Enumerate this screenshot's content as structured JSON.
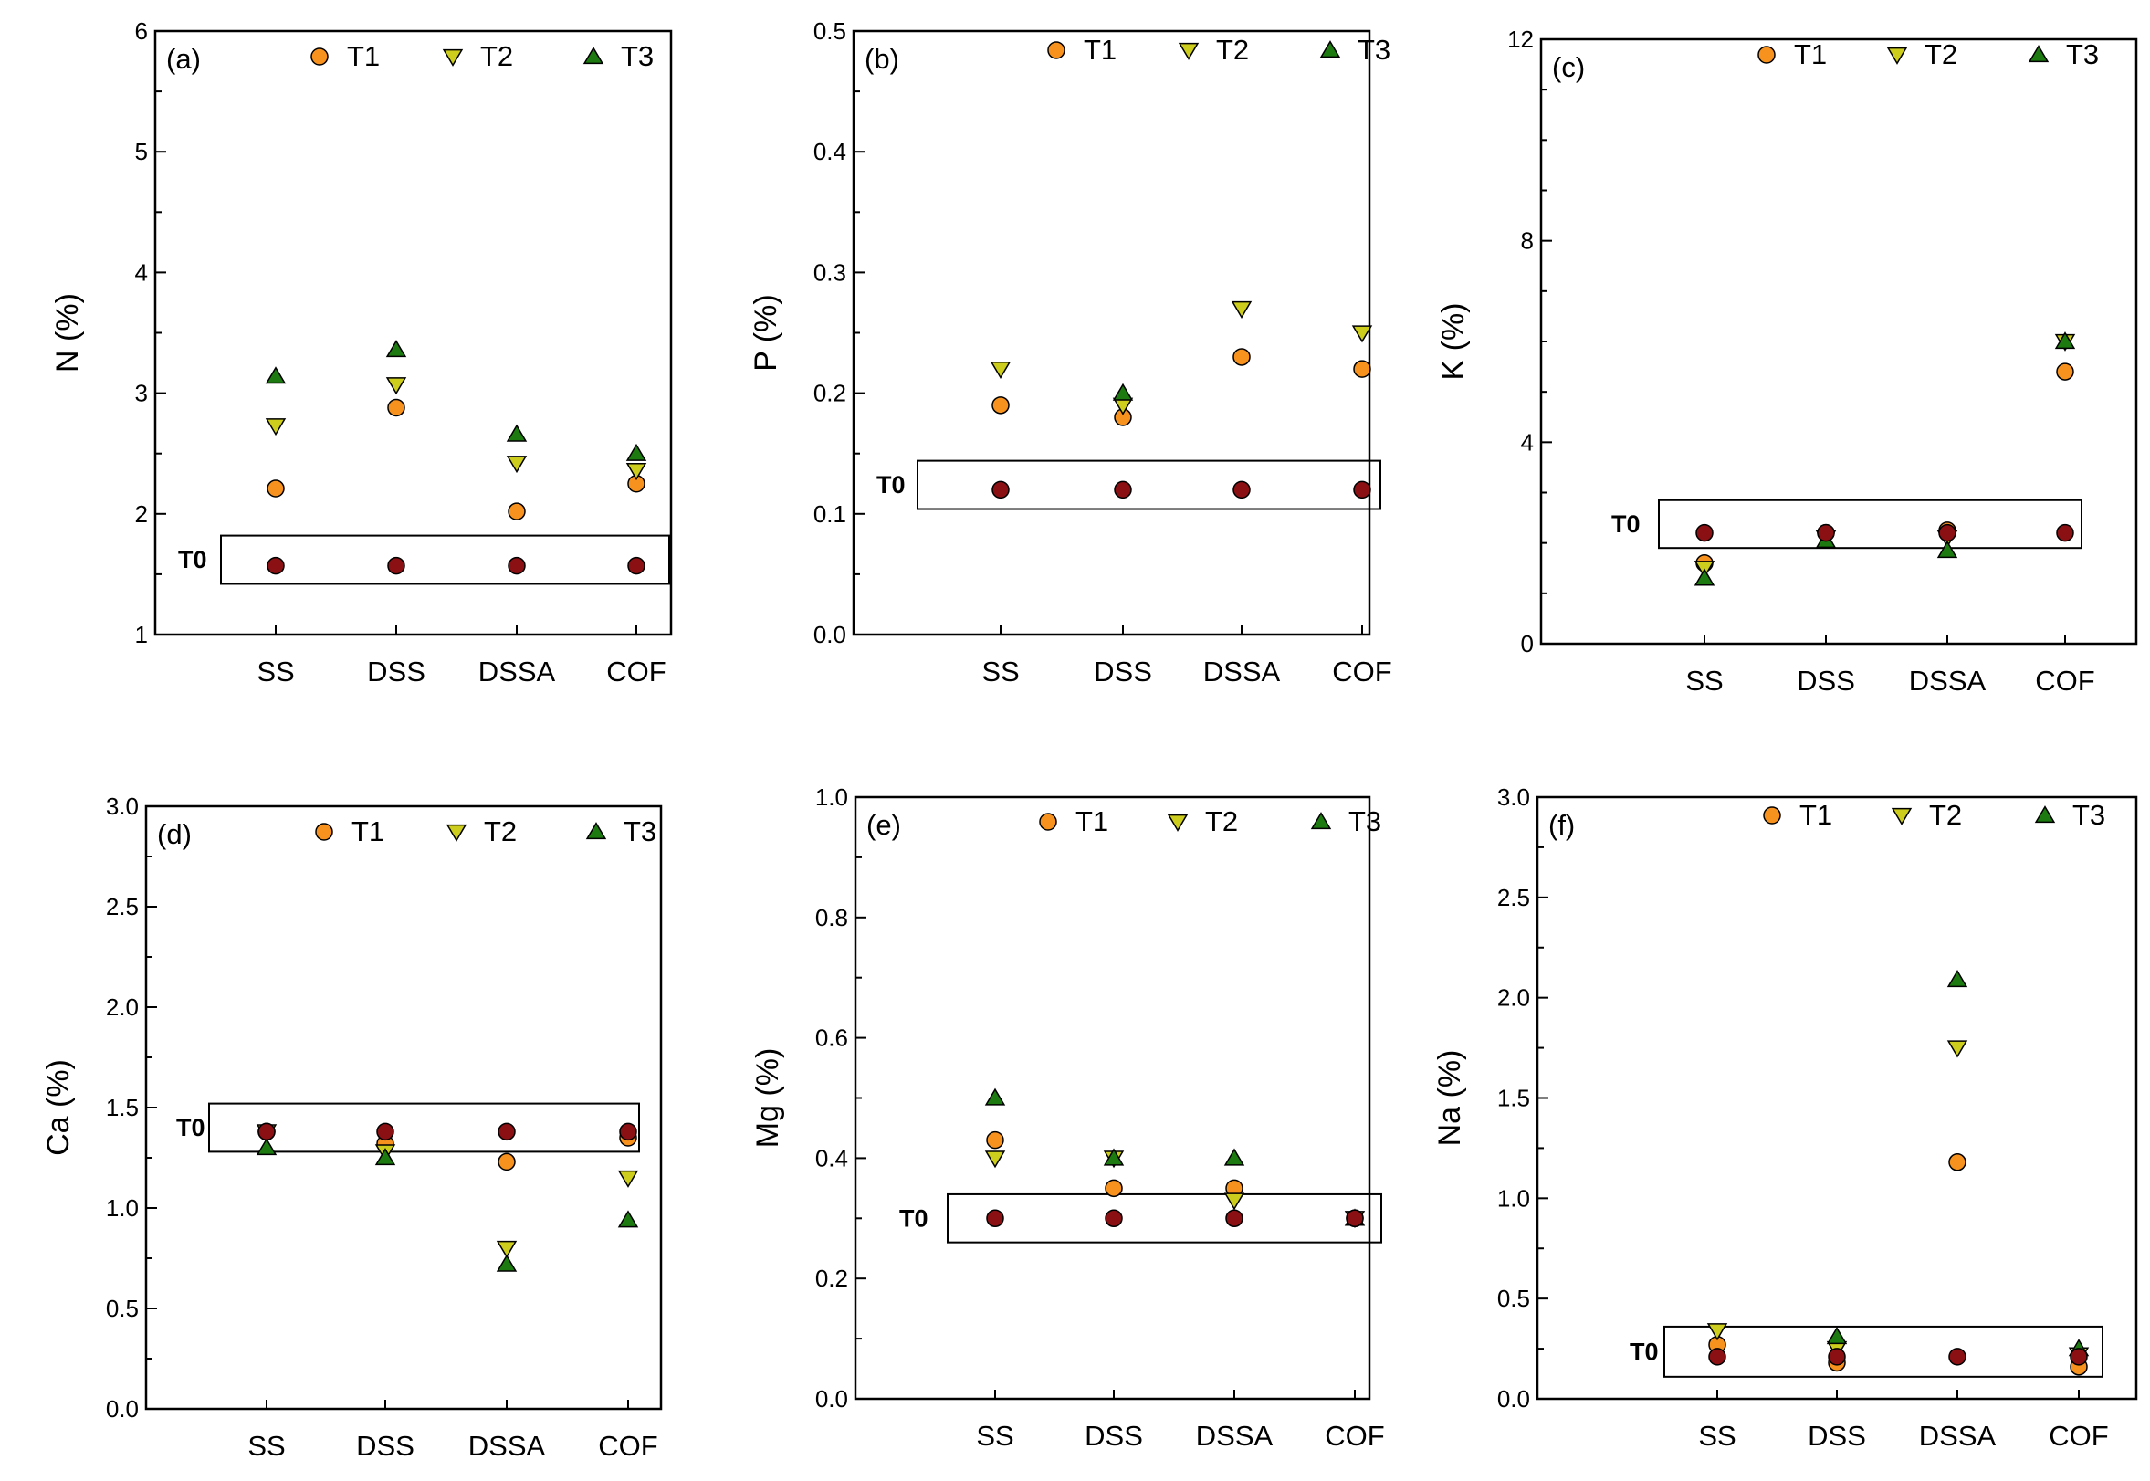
{
  "colors": {
    "T0": "#8b1014",
    "T1": "#f7921e",
    "T2": "#cdcd1e",
    "T3": "#1d7a10"
  },
  "legend": [
    "T1",
    "T2",
    "T3"
  ],
  "t0_label": "T0",
  "chart_data": [
    {
      "type": "scatter",
      "panel": "(a)",
      "ylabel": "N (%)",
      "categories": [
        "SS",
        "DSS",
        "DSSA",
        "COF"
      ],
      "ylim": [
        1,
        6
      ],
      "yticks": [
        "1",
        "2",
        "3",
        "4",
        "5",
        "6"
      ],
      "series": [
        {
          "name": "T1",
          "values": [
            2.21,
            2.88,
            2.02,
            2.25
          ]
        },
        {
          "name": "T2",
          "values": [
            2.73,
            3.07,
            2.42,
            2.36
          ]
        },
        {
          "name": "T3",
          "values": [
            3.14,
            3.36,
            2.66,
            2.5
          ]
        },
        {
          "name": "T0",
          "values": [
            1.57,
            1.57,
            1.57,
            1.57
          ]
        }
      ],
      "t0_range": [
        1.42,
        1.82
      ]
    },
    {
      "type": "scatter",
      "panel": "(b)",
      "ylabel": "P (%)",
      "categories": [
        "SS",
        "DSS",
        "DSSA",
        "COF"
      ],
      "ylim": [
        0,
        0.5
      ],
      "yticks": [
        "0.0",
        "0.1",
        "0.2",
        "0.3",
        "0.4",
        "0.5"
      ],
      "series": [
        {
          "name": "T1",
          "values": [
            0.19,
            0.18,
            0.23,
            0.22
          ]
        },
        {
          "name": "T2",
          "values": [
            0.22,
            0.19,
            0.27,
            0.25
          ]
        },
        {
          "name": "T3",
          "values": [
            null,
            0.2,
            null,
            null
          ]
        },
        {
          "name": "T0",
          "values": [
            0.12,
            0.12,
            0.12,
            0.12
          ]
        }
      ],
      "t0_range": [
        0.104,
        0.144
      ]
    },
    {
      "type": "scatter",
      "panel": "(c)",
      "ylabel": "K (%)",
      "categories": [
        "SS",
        "DSS",
        "DSSA",
        "COF"
      ],
      "ylim": [
        0,
        12
      ],
      "yticks": [
        "0",
        "4",
        "8",
        "12"
      ],
      "series": [
        {
          "name": "T1",
          "values": [
            1.6,
            2.2,
            2.25,
            5.4
          ]
        },
        {
          "name": "T2",
          "values": [
            1.5,
            2.1,
            2.1,
            6.0
          ]
        },
        {
          "name": "T3",
          "values": [
            1.3,
            2.05,
            1.85,
            6.0
          ]
        },
        {
          "name": "T0",
          "values": [
            2.2,
            2.2,
            2.2,
            2.2
          ]
        }
      ],
      "t0_range": [
        1.9,
        2.85
      ]
    },
    {
      "type": "scatter",
      "panel": "(d)",
      "ylabel": "Ca (%)",
      "categories": [
        "SS",
        "DSS",
        "DSSA",
        "COF"
      ],
      "ylim": [
        0,
        3
      ],
      "yticks": [
        "0.0",
        "0.5",
        "1.0",
        "1.5",
        "2.0",
        "2.5",
        "3.0"
      ],
      "series": [
        {
          "name": "T1",
          "values": [
            1.38,
            1.32,
            1.23,
            1.35
          ]
        },
        {
          "name": "T2",
          "values": [
            1.38,
            1.28,
            0.8,
            1.15
          ]
        },
        {
          "name": "T3",
          "values": [
            1.3,
            1.25,
            0.72,
            0.94
          ]
        },
        {
          "name": "T0",
          "values": [
            1.38,
            1.38,
            1.38,
            1.38
          ]
        }
      ],
      "t0_range": [
        1.28,
        1.52
      ]
    },
    {
      "type": "scatter",
      "panel": "(e)",
      "ylabel": "Mg (%)",
      "categories": [
        "SS",
        "DSS",
        "DSSA",
        "COF"
      ],
      "ylim": [
        0,
        1
      ],
      "yticks": [
        "0.0",
        "0.2",
        "0.4",
        "0.6",
        "0.8",
        "1.0"
      ],
      "series": [
        {
          "name": "T1",
          "values": [
            0.43,
            0.35,
            0.35,
            0.3
          ]
        },
        {
          "name": "T2",
          "values": [
            0.4,
            0.4,
            0.33,
            0.3
          ]
        },
        {
          "name": "T3",
          "values": [
            0.5,
            0.4,
            0.4,
            0.3
          ]
        },
        {
          "name": "T0",
          "values": [
            0.3,
            0.3,
            0.3,
            0.3
          ]
        }
      ],
      "t0_range": [
        0.26,
        0.34
      ]
    },
    {
      "type": "scatter",
      "panel": "(f)",
      "ylabel": "Na (%)",
      "categories": [
        "SS",
        "DSS",
        "DSSA",
        "COF"
      ],
      "ylim": [
        0,
        3
      ],
      "yticks": [
        "0.0",
        "0.5",
        "1.0",
        "1.5",
        "2.0",
        "2.5",
        "3.0"
      ],
      "series": [
        {
          "name": "T1",
          "values": [
            0.27,
            0.18,
            1.18,
            0.16
          ]
        },
        {
          "name": "T2",
          "values": [
            0.34,
            0.25,
            1.75,
            0.22
          ]
        },
        {
          "name": "T3",
          "values": [
            null,
            0.31,
            2.09,
            0.25
          ]
        },
        {
          "name": "T0",
          "values": [
            0.21,
            0.21,
            0.21,
            0.21
          ]
        }
      ],
      "t0_range": [
        0.11,
        0.36
      ]
    }
  ]
}
